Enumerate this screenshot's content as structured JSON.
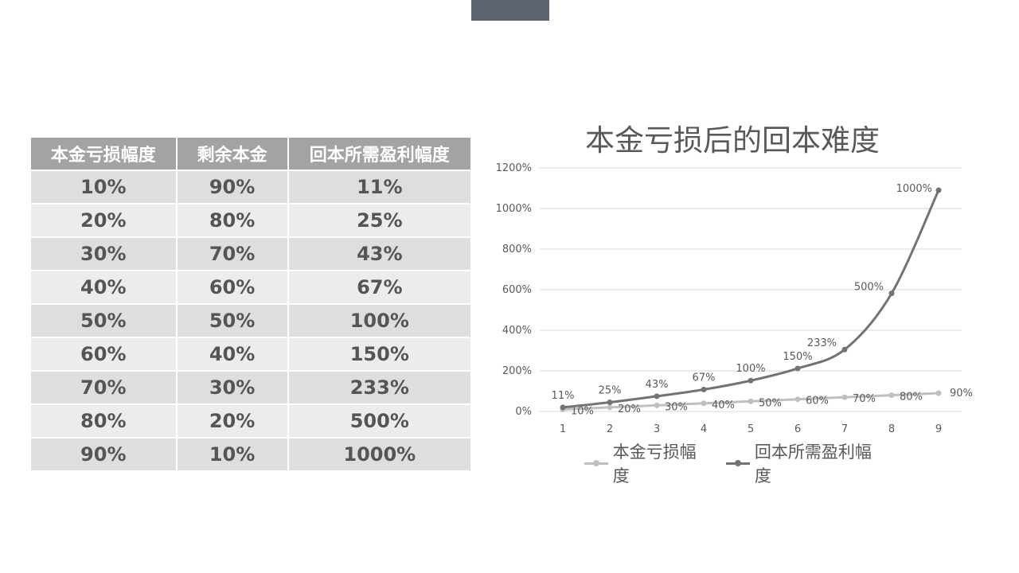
{
  "table": {
    "headers": [
      "本金亏损幅度",
      "剩余本金",
      "回本所需盈利幅度"
    ],
    "rows": [
      [
        "10%",
        "90%",
        "11%"
      ],
      [
        "20%",
        "80%",
        "25%"
      ],
      [
        "30%",
        "70%",
        "43%"
      ],
      [
        "40%",
        "60%",
        "67%"
      ],
      [
        "50%",
        "50%",
        "100%"
      ],
      [
        "60%",
        "40%",
        "150%"
      ],
      [
        "70%",
        "30%",
        "233%"
      ],
      [
        "80%",
        "20%",
        "500%"
      ],
      [
        "90%",
        "10%",
        "1000%"
      ]
    ]
  },
  "chart_data": {
    "type": "line",
    "title": "本金亏损后的回本难度",
    "x": [
      1,
      2,
      3,
      4,
      5,
      6,
      7,
      8,
      9
    ],
    "ylim": [
      0,
      1200
    ],
    "yticks": [
      0,
      200,
      400,
      600,
      800,
      1000,
      1200
    ],
    "ytick_labels": [
      "0%",
      "200%",
      "400%",
      "600%",
      "800%",
      "1000%",
      "1200%"
    ],
    "grid": true,
    "legend_position": "bottom",
    "series": [
      {
        "name": "本金亏损幅度",
        "color": "#bfbfbf",
        "values": [
          10,
          20,
          30,
          40,
          50,
          60,
          70,
          80,
          90
        ],
        "labels": [
          "10%",
          "20%",
          "30%",
          "40%",
          "50%",
          "60%",
          "70%",
          "80%",
          "90%"
        ]
      },
      {
        "name": "回本所需盈利幅度",
        "color": "#737373",
        "values": [
          20,
          45,
          75,
          108,
          152,
          212,
          305,
          582,
          1090
        ],
        "labels": [
          "11%",
          "25%",
          "43%",
          "67%",
          "100%",
          "150%",
          "233%",
          "500%",
          "1000%"
        ]
      }
    ]
  }
}
